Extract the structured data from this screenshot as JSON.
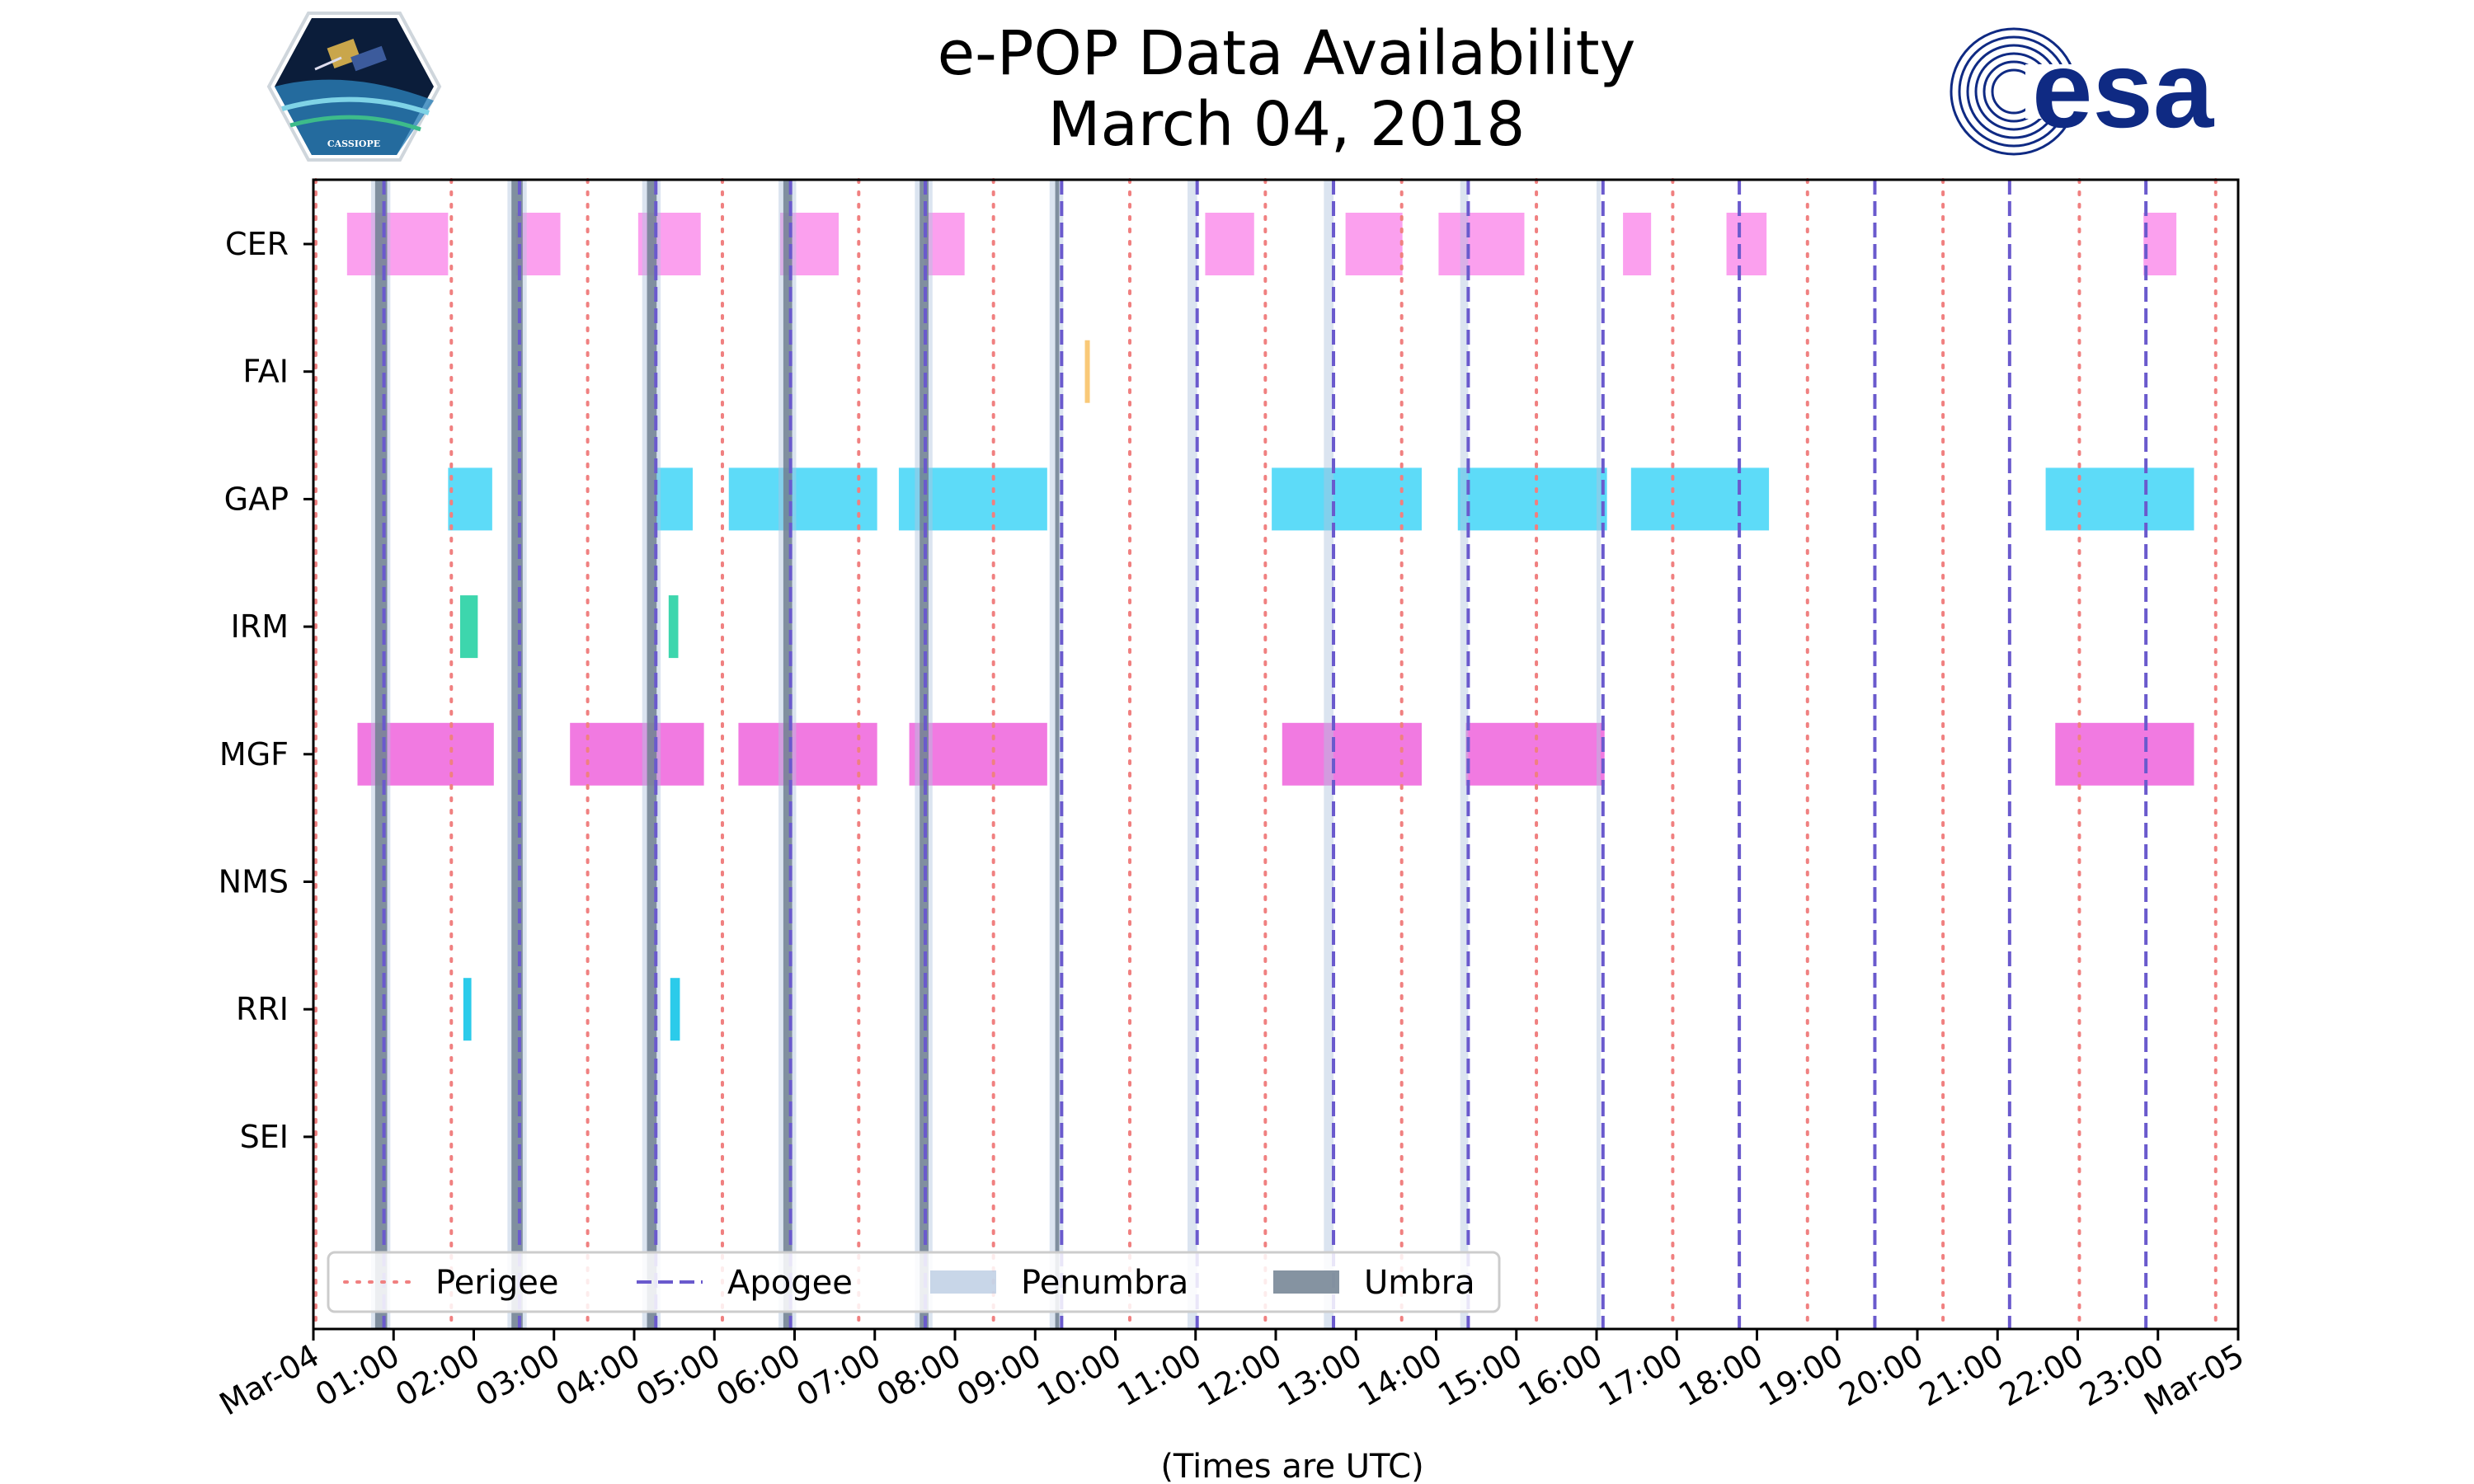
{
  "header": {
    "title": "e-POP Data Availability",
    "subtitle": "March 04, 2018"
  },
  "logos": {
    "left": {
      "name": "cassiope-mission-logo",
      "text": "CASSIOPE"
    },
    "right": {
      "name": "esa-logo",
      "text": "esa"
    }
  },
  "colors": {
    "perigee": "#f08080",
    "apogee": "#6a5acd",
    "penumbra": "#b0c4de",
    "umbra": "#708090",
    "CER": "#fba0ee",
    "FAI": "#f9c978",
    "GAP": "#5ddbf8",
    "IRM": "#3dd6ad",
    "MGF": "#f17ae1",
    "NMS": "#999999",
    "RRI": "#2bcbea",
    "SEI": "#999999",
    "esa_blue": "#0f2a83"
  },
  "chart_data": {
    "type": "timeline",
    "title": "e-POP Data Availability",
    "subtitle": "March 04, 2018",
    "xlabel": "(Times are UTC)",
    "xlim_hours": [
      0,
      24
    ],
    "x_ticks": [
      {
        "hour": 0,
        "label": "Mar-04"
      },
      {
        "hour": 1,
        "label": "01:00"
      },
      {
        "hour": 2,
        "label": "02:00"
      },
      {
        "hour": 3,
        "label": "03:00"
      },
      {
        "hour": 4,
        "label": "04:00"
      },
      {
        "hour": 5,
        "label": "05:00"
      },
      {
        "hour": 6,
        "label": "06:00"
      },
      {
        "hour": 7,
        "label": "07:00"
      },
      {
        "hour": 8,
        "label": "08:00"
      },
      {
        "hour": 9,
        "label": "09:00"
      },
      {
        "hour": 10,
        "label": "10:00"
      },
      {
        "hour": 11,
        "label": "11:00"
      },
      {
        "hour": 12,
        "label": "12:00"
      },
      {
        "hour": 13,
        "label": "13:00"
      },
      {
        "hour": 14,
        "label": "14:00"
      },
      {
        "hour": 15,
        "label": "15:00"
      },
      {
        "hour": 16,
        "label": "16:00"
      },
      {
        "hour": 17,
        "label": "17:00"
      },
      {
        "hour": 18,
        "label": "18:00"
      },
      {
        "hour": 19,
        "label": "19:00"
      },
      {
        "hour": 20,
        "label": "20:00"
      },
      {
        "hour": 21,
        "label": "21:00"
      },
      {
        "hour": 22,
        "label": "22:00"
      },
      {
        "hour": 23,
        "label": "23:00"
      },
      {
        "hour": 24,
        "label": "Mar-05"
      }
    ],
    "instruments": [
      "CER",
      "FAI",
      "GAP",
      "IRM",
      "MGF",
      "NMS",
      "RRI",
      "SEI"
    ],
    "intervals": {
      "CER": [
        [
          0.42,
          1.68
        ],
        [
          2.53,
          3.08
        ],
        [
          4.05,
          4.83
        ],
        [
          5.82,
          6.55
        ],
        [
          7.62,
          8.12
        ],
        [
          11.12,
          11.73
        ],
        [
          12.87,
          13.58
        ],
        [
          14.03,
          15.1
        ],
        [
          16.33,
          16.68
        ],
        [
          17.62,
          18.12
        ],
        [
          22.82,
          23.23
        ]
      ],
      "FAI": [
        [
          9.62,
          9.68
        ]
      ],
      "GAP": [
        [
          1.68,
          2.23
        ],
        [
          4.27,
          4.73
        ],
        [
          5.18,
          7.03
        ],
        [
          7.3,
          9.15
        ],
        [
          11.95,
          13.82
        ],
        [
          14.27,
          16.13
        ],
        [
          16.43,
          18.15
        ],
        [
          21.6,
          23.45
        ]
      ],
      "IRM": [
        [
          1.83,
          2.05
        ],
        [
          4.43,
          4.55
        ]
      ],
      "MGF": [
        [
          0.55,
          2.25
        ],
        [
          3.2,
          4.87
        ],
        [
          5.3,
          7.03
        ],
        [
          7.43,
          9.15
        ],
        [
          12.08,
          13.82
        ],
        [
          14.37,
          16.1
        ],
        [
          21.72,
          23.45
        ]
      ],
      "NMS": [],
      "RRI": [
        [
          1.87,
          1.97
        ],
        [
          4.45,
          4.57
        ]
      ],
      "SEI": []
    },
    "perigee_hours": [
      0.03,
      1.72,
      3.42,
      5.1,
      6.8,
      8.48,
      10.18,
      11.87,
      13.57,
      15.25,
      16.95,
      18.63,
      20.32,
      22.02,
      23.72
    ],
    "apogee_hours": [
      0.88,
      2.57,
      4.27,
      5.95,
      7.63,
      9.33,
      11.02,
      12.72,
      14.4,
      16.08,
      17.78,
      19.47,
      21.15,
      22.85
    ],
    "penumbra_intervals": [
      [
        0.72,
        0.96
      ],
      [
        2.42,
        2.66
      ],
      [
        4.1,
        4.33
      ],
      [
        5.8,
        6.02
      ],
      [
        7.5,
        7.72
      ],
      [
        9.18,
        9.35
      ],
      [
        10.9,
        11.02
      ],
      [
        12.6,
        12.72
      ],
      [
        14.3,
        14.4
      ],
      [
        16.0,
        16.05
      ]
    ],
    "umbra_intervals": [
      [
        0.77,
        0.92
      ],
      [
        2.47,
        2.61
      ],
      [
        4.16,
        4.28
      ],
      [
        5.86,
        5.97
      ],
      [
        7.56,
        7.67
      ],
      [
        9.25,
        9.3
      ]
    ],
    "legend": {
      "position": "lower-left",
      "entries": [
        {
          "label": "Perigee",
          "style": "dotted",
          "color_key": "perigee"
        },
        {
          "label": "Apogee",
          "style": "dashed",
          "color_key": "apogee"
        },
        {
          "label": "Penumbra",
          "style": "patch",
          "color_key": "penumbra"
        },
        {
          "label": "Umbra",
          "style": "patch",
          "color_key": "umbra"
        }
      ]
    }
  }
}
